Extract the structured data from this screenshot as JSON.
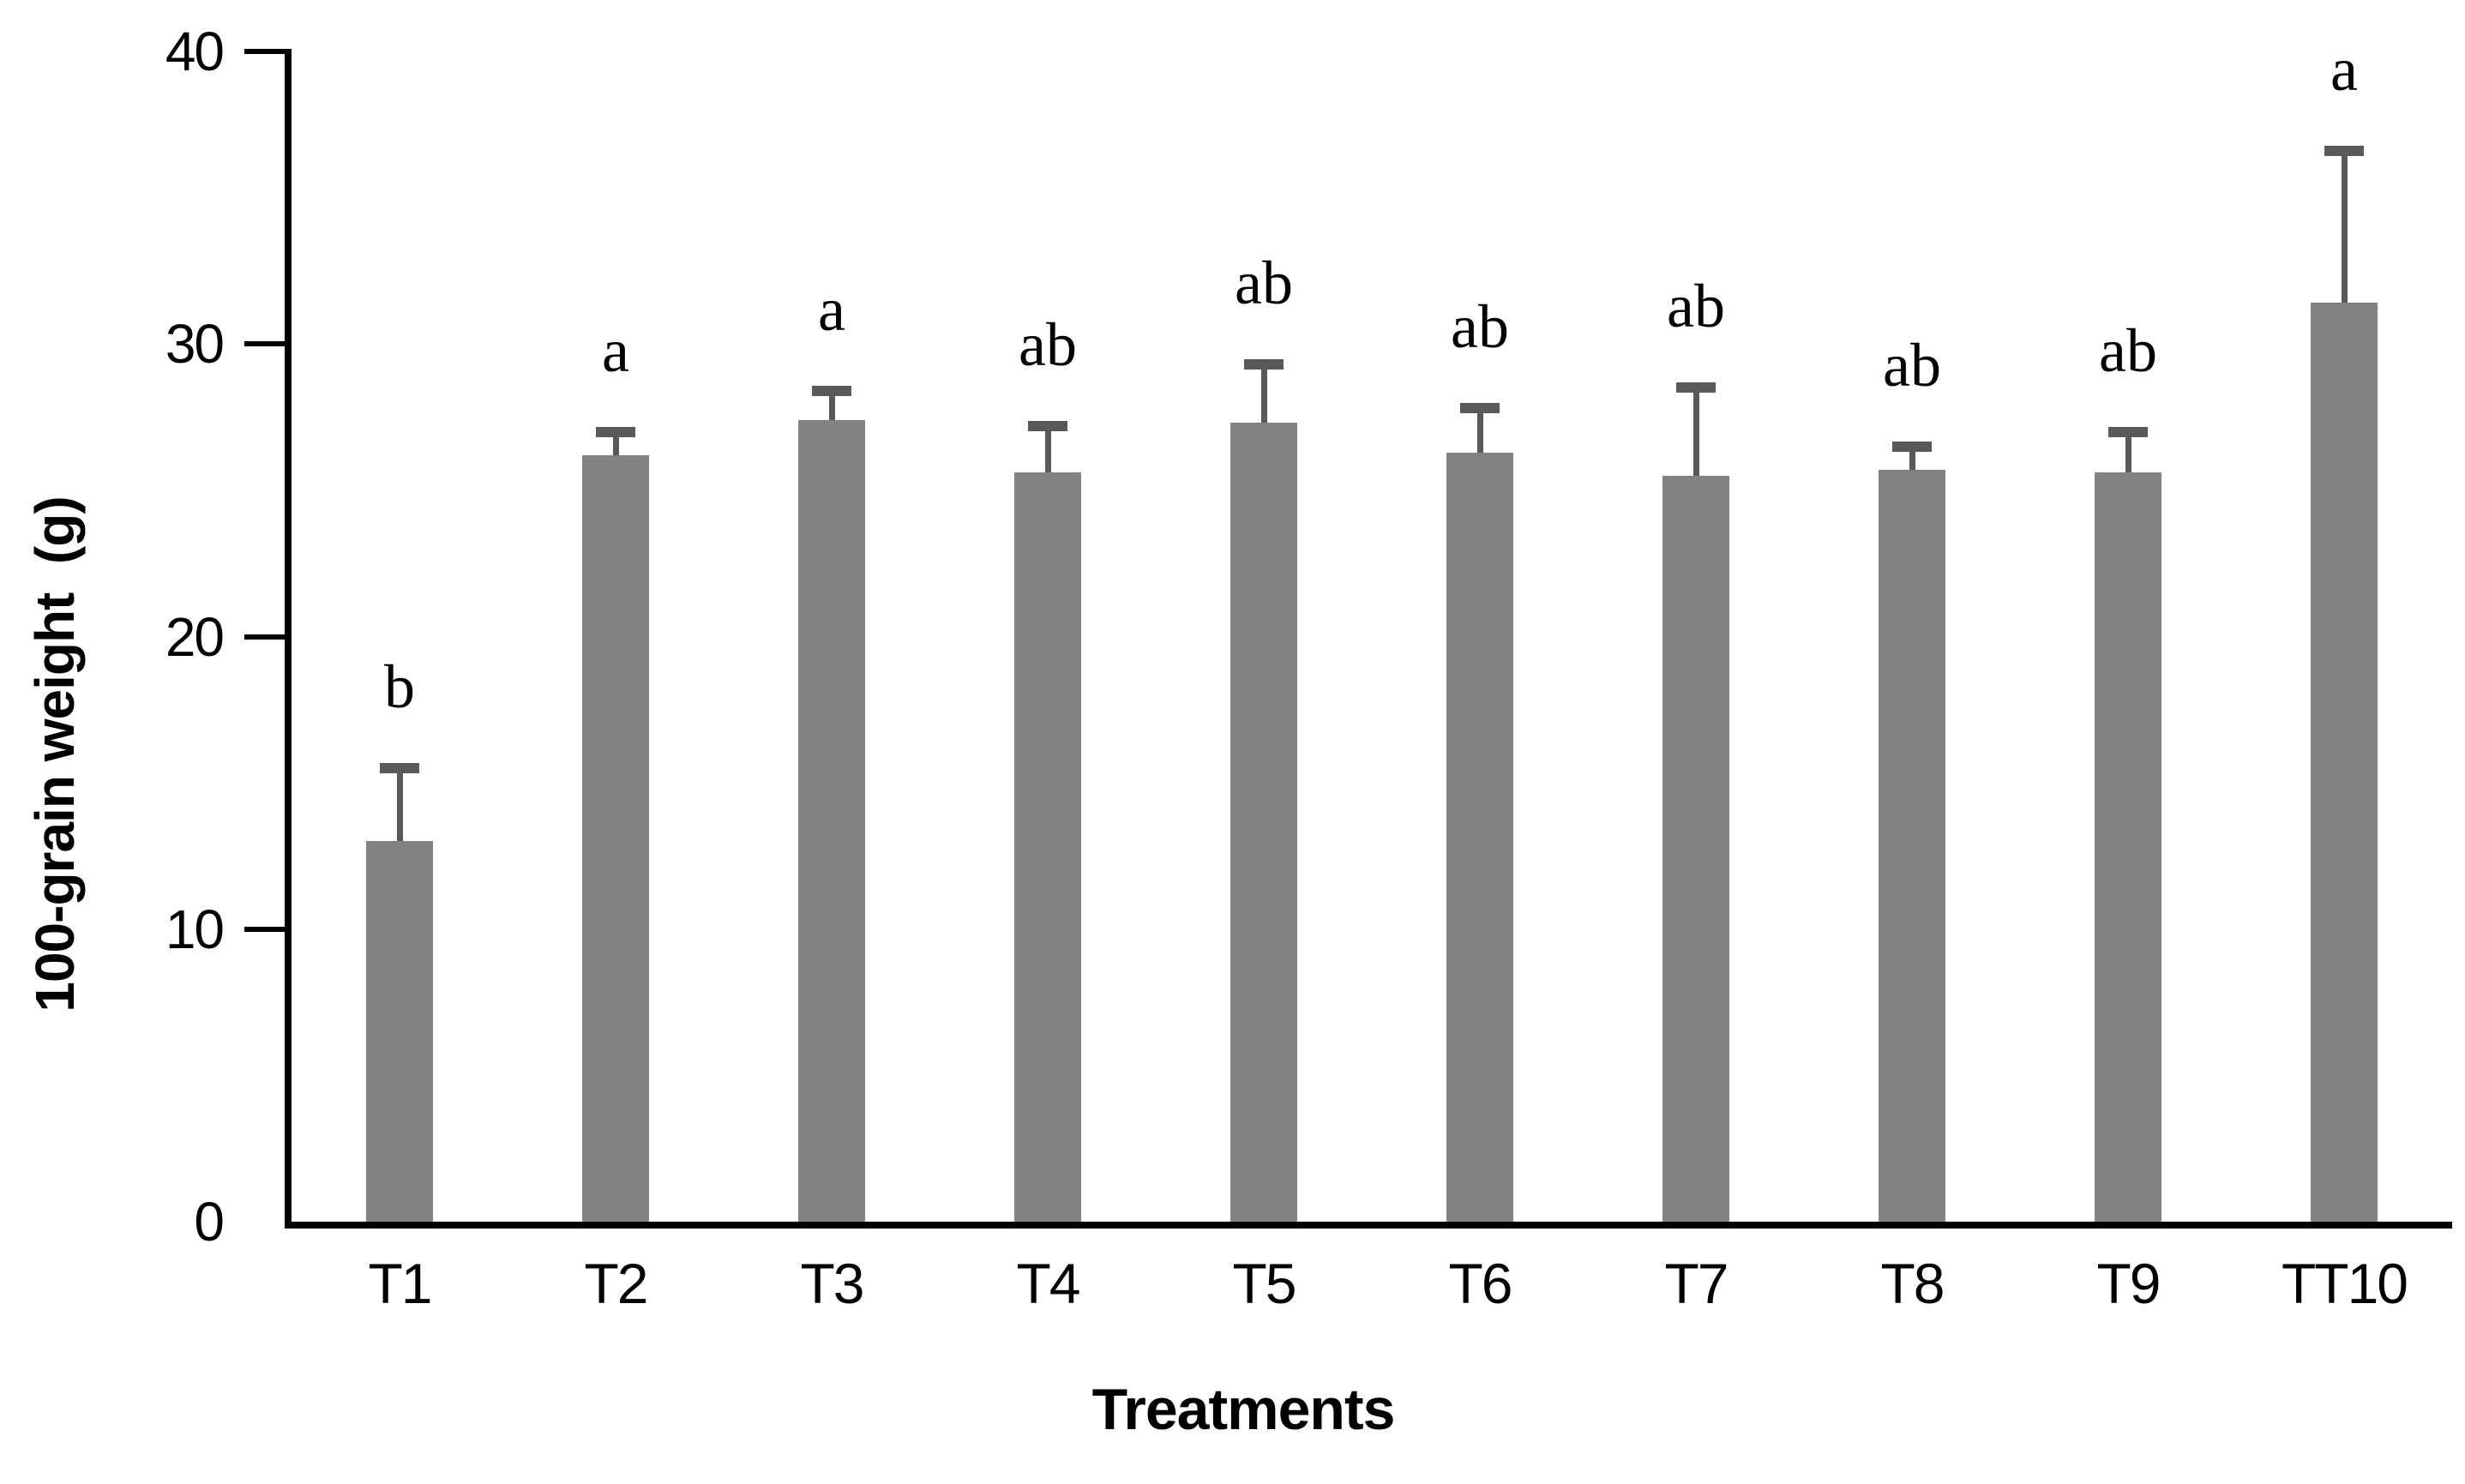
{
  "chart_data": {
    "type": "bar",
    "title": "",
    "xlabel": "Treatments",
    "ylabel": "100-grain weight  (g)",
    "categories": [
      "T1",
      "T2",
      "T3",
      "T4",
      "T5",
      "T6",
      "T7",
      "T8",
      "T9",
      "TT10"
    ],
    "values": [
      13.0,
      26.2,
      27.4,
      25.6,
      27.3,
      26.3,
      25.5,
      25.7,
      25.6,
      31.4
    ],
    "error_plus": [
      2.5,
      0.8,
      1.0,
      1.6,
      2.0,
      1.5,
      3.0,
      0.8,
      1.4,
      5.2
    ],
    "sig_letters": [
      "b",
      "a",
      "a",
      "ab",
      "ab",
      "ab",
      "ab",
      "ab",
      "ab",
      "a"
    ],
    "ylim": [
      0,
      40
    ],
    "yticks": [
      0,
      10,
      20,
      30,
      40
    ],
    "grid": false,
    "legend": null,
    "colors": {
      "bar_fill": "#828282",
      "error_bar": "#595959",
      "axis": "#000000",
      "background": "#ffffff",
      "text": "#000000"
    }
  }
}
